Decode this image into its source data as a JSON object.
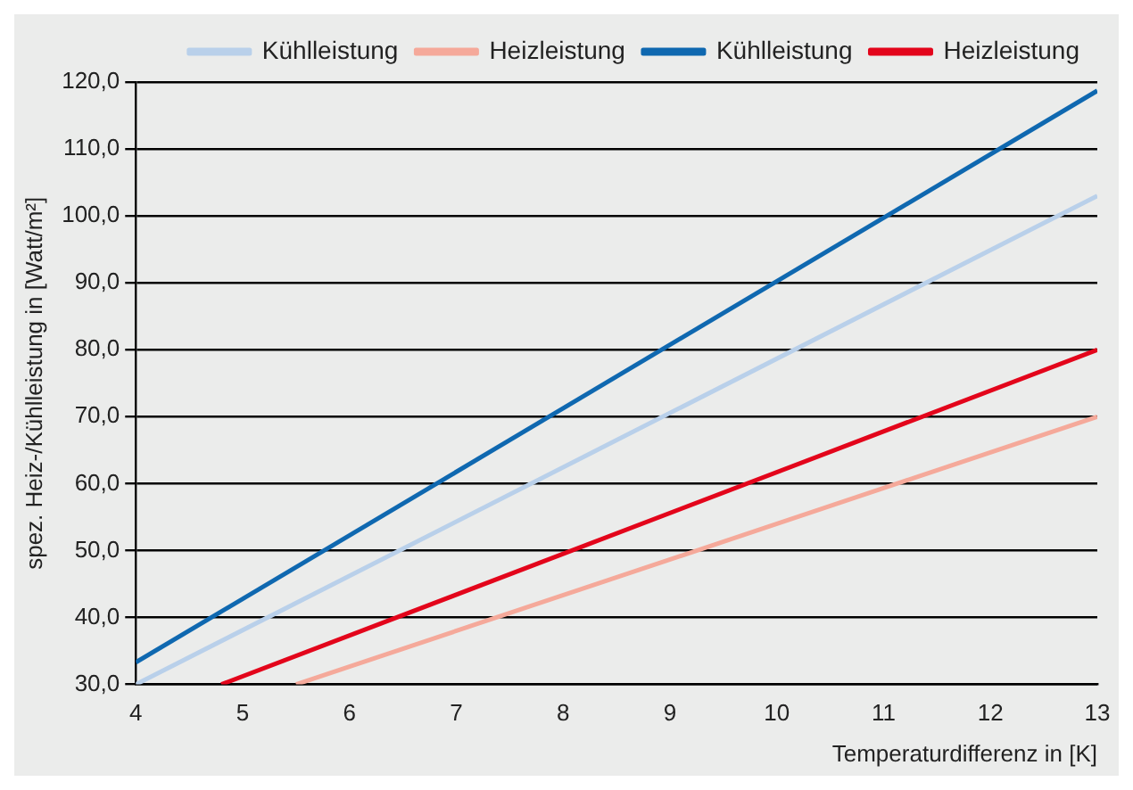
{
  "chart_data": {
    "type": "line",
    "xlabel": "Temperaturdifferenz in [K]",
    "ylabel": "spez. Heiz-/Kühlleistung in [Watt/m²]",
    "series": [
      {
        "name": "Kühlleistung",
        "color": "#b9d0ea",
        "x": [
          4,
          13
        ],
        "values": [
          30,
          103
        ]
      },
      {
        "name": "Heizleistung",
        "color": "#f5a99a",
        "x": [
          5.5,
          13
        ],
        "values": [
          30,
          70
        ]
      },
      {
        "name": "Kühlleistung",
        "color": "#0f68b0",
        "x": [
          4,
          13
        ],
        "values": [
          33.3,
          118.7
        ]
      },
      {
        "name": "Heizleistung",
        "color": "#e3051b",
        "x": [
          4.8,
          13
        ],
        "values": [
          30,
          80
        ]
      }
    ],
    "xlim": [
      4,
      13
    ],
    "xticks": [
      4,
      5,
      6,
      7,
      8,
      9,
      10,
      11,
      12,
      13
    ],
    "ylim": [
      30,
      120
    ],
    "yticks": [
      {
        "value": 30,
        "label": "30,0"
      },
      {
        "value": 40,
        "label": "40,0"
      },
      {
        "value": 50,
        "label": "50,0"
      },
      {
        "value": 60,
        "label": "60,0"
      },
      {
        "value": 70,
        "label": "70,0"
      },
      {
        "value": 80,
        "label": "80,0"
      },
      {
        "value": 90,
        "label": "90,0"
      },
      {
        "value": 100,
        "label": "100,0"
      },
      {
        "value": 110,
        "label": "110,0"
      },
      {
        "value": 120,
        "label": "120,0"
      }
    ],
    "grid": "y",
    "legend": "top right",
    "marker": "none",
    "line_style": "solid"
  }
}
